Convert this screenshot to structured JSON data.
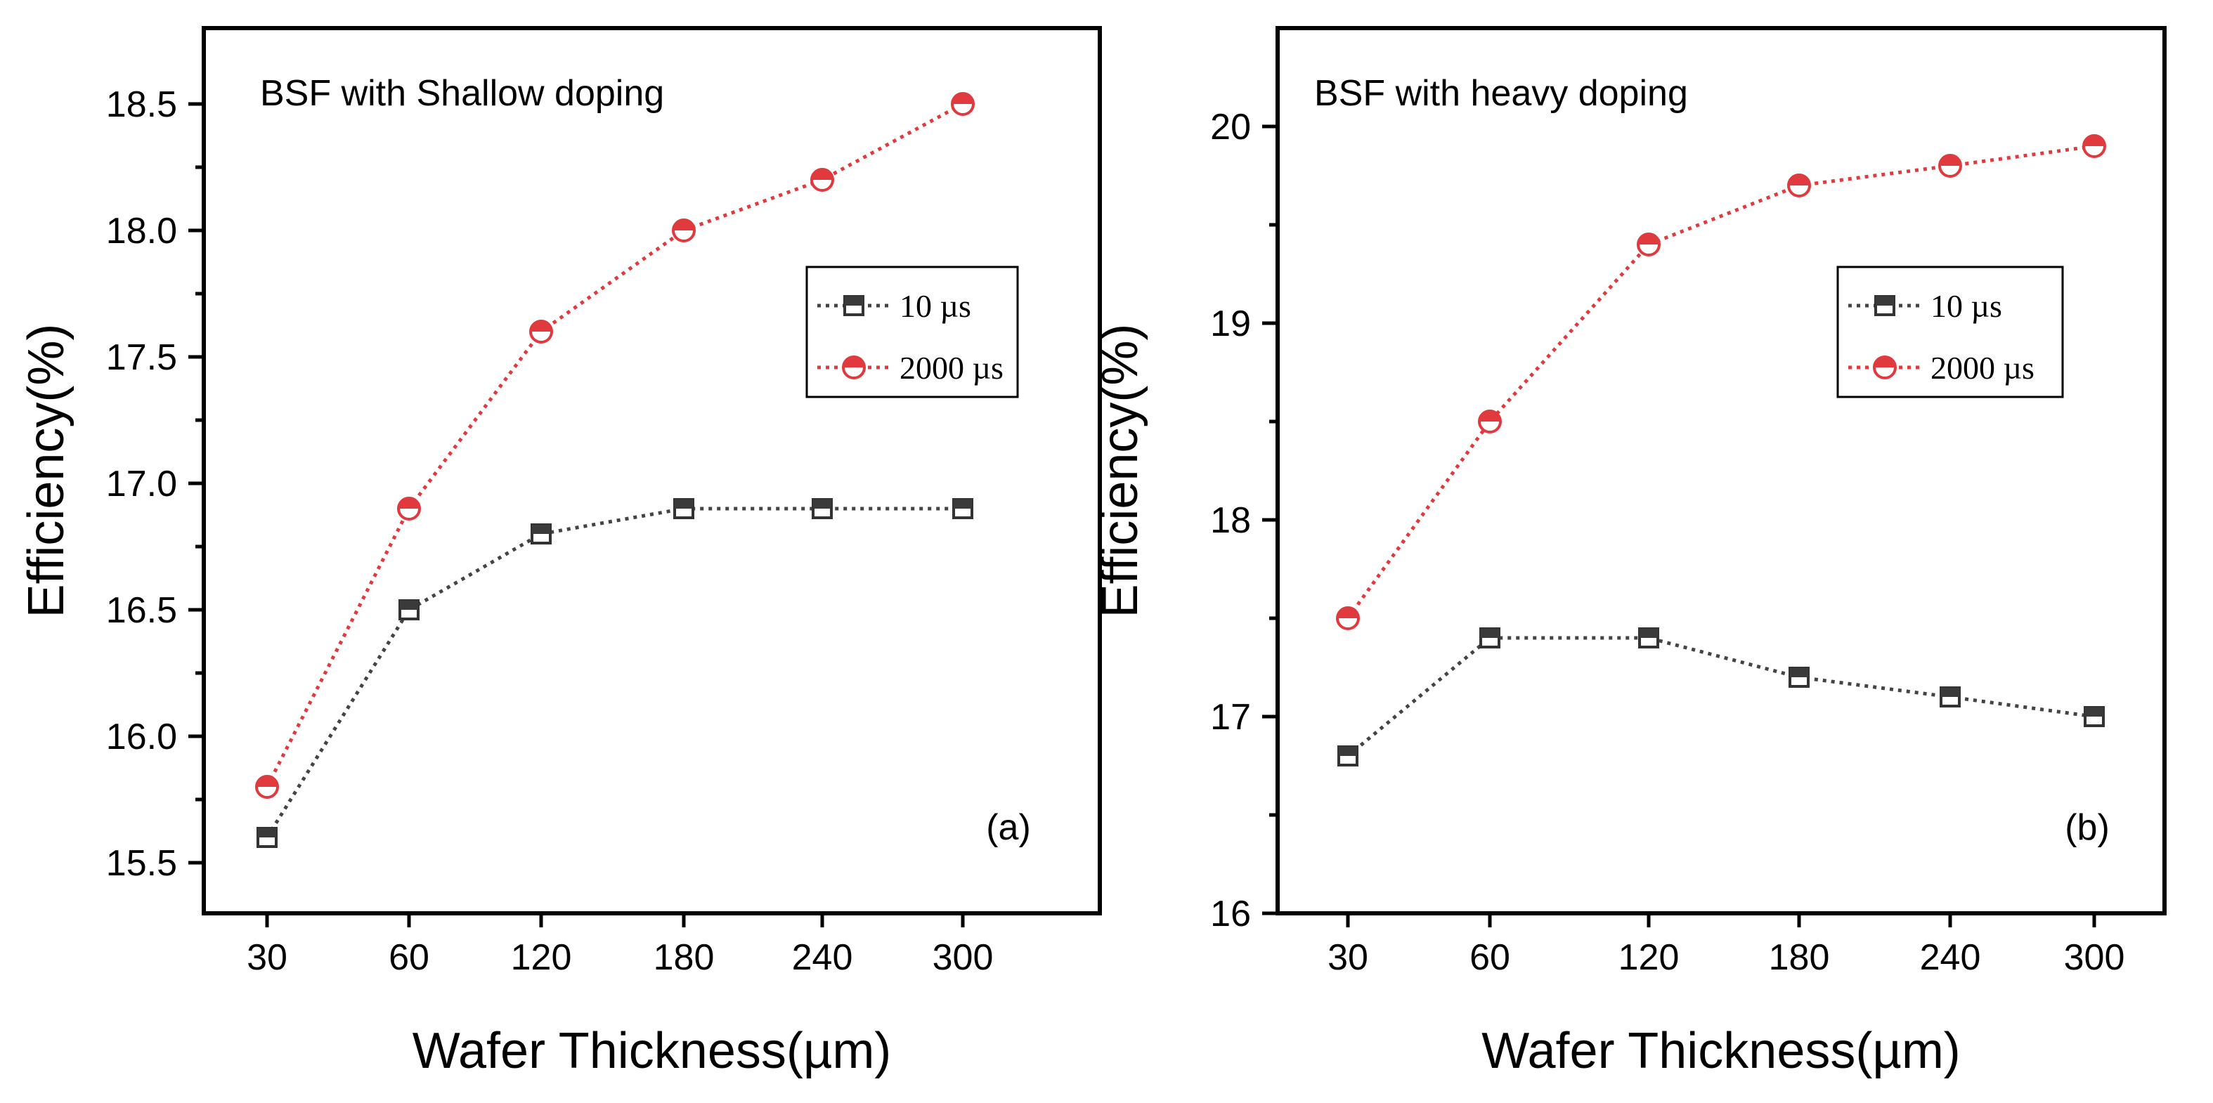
{
  "colors": {
    "series_10us": "#444444",
    "series_2000us": "#e0393e",
    "axes": "#000000",
    "background": "#ffffff"
  },
  "chart_data": [
    {
      "type": "line",
      "panel_label": "(a)",
      "annotation": "BSF with Shallow doping",
      "xlabel": "Wafer Thickness(µm)",
      "ylabel": "Efficiency(%)",
      "categories": [
        "30",
        "60",
        "120",
        "180",
        "240",
        "300"
      ],
      "ylim": [
        15.3,
        18.8
      ],
      "yticks": [
        "15.5",
        "16.0",
        "16.5",
        "17.0",
        "17.5",
        "18.0",
        "18.5"
      ],
      "ytick_values": [
        15.5,
        16.0,
        16.5,
        17.0,
        17.5,
        18.0,
        18.5
      ],
      "grid": false,
      "legend_position": "right",
      "series": [
        {
          "name": "10 µs",
          "marker": "square",
          "values": [
            15.6,
            16.5,
            16.8,
            16.9,
            16.9,
            16.9
          ]
        },
        {
          "name": "2000 µs",
          "marker": "circle",
          "values": [
            15.8,
            16.9,
            17.6,
            18.0,
            18.2,
            18.5
          ]
        }
      ]
    },
    {
      "type": "line",
      "panel_label": "(b)",
      "annotation": "BSF with heavy doping",
      "xlabel": "Wafer Thickness(µm)",
      "ylabel": "Efficiency(%)",
      "categories": [
        "30",
        "60",
        "120",
        "180",
        "240",
        "300"
      ],
      "ylim": [
        16.0,
        20.5
      ],
      "yticks": [
        "16",
        "17",
        "18",
        "19",
        "20"
      ],
      "ytick_values": [
        16,
        17,
        18,
        19,
        20
      ],
      "grid": false,
      "legend_position": "right",
      "series": [
        {
          "name": "10 µs",
          "marker": "square",
          "values": [
            16.8,
            17.4,
            17.4,
            17.2,
            17.1,
            17.0
          ]
        },
        {
          "name": "2000 µs",
          "marker": "circle",
          "values": [
            17.5,
            18.5,
            19.4,
            19.7,
            19.8,
            19.9
          ]
        }
      ]
    }
  ]
}
